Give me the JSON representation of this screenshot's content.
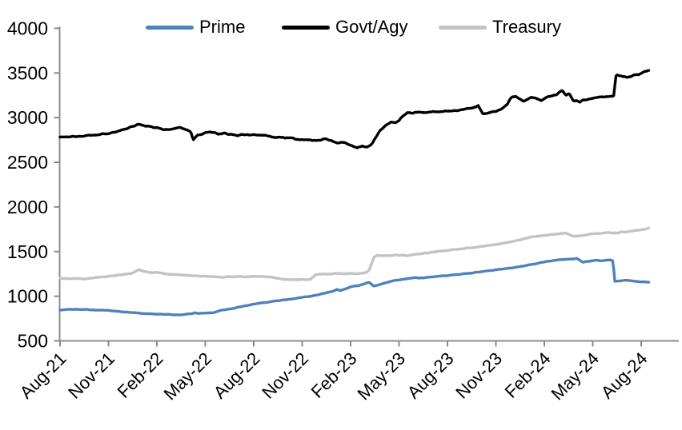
{
  "style": {
    "background": "#FFFFFF",
    "axis_color": "#8C8C8C",
    "label_color": "#000000",
    "series_stroke_width": 3.4,
    "jitter": {
      "Prime": 7,
      "Govt/Agy": 16,
      "Treasury": 8
    }
  },
  "chart_data": {
    "type": "line",
    "title": "",
    "xlabel": "",
    "ylabel": "",
    "grid": false,
    "legend_position": "top",
    "x_encoding": "months after Aug-2021 (0 = Aug-21, tick every 3 months)",
    "x_axis": {
      "tick_labels": [
        "Aug-21",
        "Nov-21",
        "Feb-22",
        "May-22",
        "Aug-22",
        "Nov-22",
        "Feb-23",
        "May-23",
        "Aug-23",
        "Nov-23",
        "Feb-24",
        "May-24",
        "Aug-24"
      ],
      "months_per_tick": 3,
      "label_rotation_deg": -45
    },
    "y_axis": {
      "tick_labels": [
        "500",
        "1000",
        "1500",
        "2000",
        "2500",
        "3000",
        "3500",
        "4000"
      ],
      "min": 500,
      "max": 4000,
      "step": 500
    },
    "series": [
      {
        "name": "Prime",
        "color": "#4F81BD",
        "points": [
          [
            0,
            845
          ],
          [
            0.5,
            853
          ],
          [
            1,
            856
          ],
          [
            1.5,
            851
          ],
          [
            2,
            848
          ],
          [
            2.5,
            845
          ],
          [
            3,
            840
          ],
          [
            3.5,
            833
          ],
          [
            4,
            825
          ],
          [
            4.5,
            817
          ],
          [
            5,
            809
          ],
          [
            5.5,
            803
          ],
          [
            6,
            799
          ],
          [
            6.5,
            796
          ],
          [
            7,
            794
          ],
          [
            7.5,
            792
          ],
          [
            8,
            800
          ],
          [
            8.3,
            812
          ],
          [
            8.6,
            806
          ],
          [
            9,
            810
          ],
          [
            9.5,
            813
          ],
          [
            10,
            843
          ],
          [
            10.5,
            856
          ],
          [
            11,
            877
          ],
          [
            11.5,
            893
          ],
          [
            12,
            910
          ],
          [
            12.5,
            925
          ],
          [
            13,
            938
          ],
          [
            13.5,
            950
          ],
          [
            14,
            962
          ],
          [
            14.5,
            973
          ],
          [
            15,
            986
          ],
          [
            15.5,
            1000
          ],
          [
            16,
            1016
          ],
          [
            16.5,
            1038
          ],
          [
            17,
            1060
          ],
          [
            17.15,
            1076
          ],
          [
            17.35,
            1064
          ],
          [
            18,
            1103
          ],
          [
            18.5,
            1122
          ],
          [
            18.9,
            1142
          ],
          [
            19.15,
            1157
          ],
          [
            19.45,
            1113
          ],
          [
            19.8,
            1128
          ],
          [
            20,
            1140
          ],
          [
            20.5,
            1168
          ],
          [
            21,
            1184
          ],
          [
            21.5,
            1199
          ],
          [
            22,
            1208
          ],
          [
            22.5,
            1204
          ],
          [
            23,
            1217
          ],
          [
            23.5,
            1224
          ],
          [
            24,
            1231
          ],
          [
            24.5,
            1241
          ],
          [
            25,
            1251
          ],
          [
            25.5,
            1261
          ],
          [
            26,
            1271
          ],
          [
            26.5,
            1283
          ],
          [
            27,
            1294
          ],
          [
            27.5,
            1306
          ],
          [
            28,
            1317
          ],
          [
            28.5,
            1331
          ],
          [
            29,
            1347
          ],
          [
            29.5,
            1364
          ],
          [
            30,
            1386
          ],
          [
            30.5,
            1397
          ],
          [
            31,
            1407
          ],
          [
            31.5,
            1414
          ],
          [
            32,
            1424
          ],
          [
            32.4,
            1379
          ],
          [
            32.8,
            1394
          ],
          [
            33.2,
            1404
          ],
          [
            33.6,
            1397
          ],
          [
            34,
            1406
          ],
          [
            34.26,
            1397
          ],
          [
            34.36,
            1164
          ],
          [
            34.7,
            1172
          ],
          [
            35,
            1178
          ],
          [
            35.5,
            1170
          ],
          [
            36,
            1162
          ],
          [
            36.5,
            1156
          ]
        ]
      },
      {
        "name": "Govt/Agy",
        "color": "#000000",
        "points": [
          [
            0,
            2780
          ],
          [
            0.5,
            2783
          ],
          [
            1,
            2788
          ],
          [
            1.5,
            2796
          ],
          [
            2,
            2805
          ],
          [
            2.5,
            2814
          ],
          [
            3,
            2825
          ],
          [
            3.5,
            2843
          ],
          [
            4,
            2868
          ],
          [
            4.5,
            2900
          ],
          [
            4.9,
            2930
          ],
          [
            5.3,
            2906
          ],
          [
            5.7,
            2896
          ],
          [
            6,
            2885
          ],
          [
            6.3,
            2868
          ],
          [
            6.6,
            2860
          ],
          [
            7,
            2870
          ],
          [
            7.4,
            2890
          ],
          [
            7.8,
            2868
          ],
          [
            8.1,
            2838
          ],
          [
            8.25,
            2752
          ],
          [
            8.5,
            2798
          ],
          [
            9,
            2828
          ],
          [
            9.4,
            2842
          ],
          [
            9.8,
            2818
          ],
          [
            10.2,
            2826
          ],
          [
            10.6,
            2808
          ],
          [
            11,
            2798
          ],
          [
            11.4,
            2812
          ],
          [
            11.8,
            2806
          ],
          [
            12.2,
            2810
          ],
          [
            12.6,
            2798
          ],
          [
            13,
            2790
          ],
          [
            13.5,
            2778
          ],
          [
            14,
            2768
          ],
          [
            14.4,
            2776
          ],
          [
            14.8,
            2752
          ],
          [
            15.2,
            2758
          ],
          [
            15.6,
            2748
          ],
          [
            16,
            2740
          ],
          [
            16.4,
            2762
          ],
          [
            16.8,
            2738
          ],
          [
            17.2,
            2712
          ],
          [
            17.6,
            2722
          ],
          [
            18,
            2692
          ],
          [
            18.4,
            2664
          ],
          [
            18.7,
            2678
          ],
          [
            19,
            2668
          ],
          [
            19.3,
            2700
          ],
          [
            19.6,
            2790
          ],
          [
            19.9,
            2868
          ],
          [
            20.2,
            2912
          ],
          [
            20.5,
            2952
          ],
          [
            20.8,
            2938
          ],
          [
            21.1,
            2990
          ],
          [
            21.5,
            3058
          ],
          [
            21.9,
            3052
          ],
          [
            22.3,
            3062
          ],
          [
            22.7,
            3055
          ],
          [
            23.1,
            3068
          ],
          [
            23.5,
            3060
          ],
          [
            24,
            3074
          ],
          [
            24.5,
            3080
          ],
          [
            25,
            3092
          ],
          [
            25.5,
            3108
          ],
          [
            25.9,
            3134
          ],
          [
            26.2,
            3038
          ],
          [
            26.5,
            3052
          ],
          [
            26.9,
            3068
          ],
          [
            27.3,
            3092
          ],
          [
            27.7,
            3148
          ],
          [
            27.9,
            3218
          ],
          [
            28.2,
            3240
          ],
          [
            28.7,
            3180
          ],
          [
            29.2,
            3224
          ],
          [
            29.8,
            3196
          ],
          [
            30.3,
            3240
          ],
          [
            30.7,
            3254
          ],
          [
            31.1,
            3304
          ],
          [
            31.35,
            3242
          ],
          [
            31.55,
            3272
          ],
          [
            31.8,
            3190
          ],
          [
            32.2,
            3178
          ],
          [
            32.6,
            3204
          ],
          [
            33,
            3220
          ],
          [
            33.5,
            3228
          ],
          [
            34,
            3234
          ],
          [
            34.3,
            3244
          ],
          [
            34.45,
            3478
          ],
          [
            34.8,
            3468
          ],
          [
            35.1,
            3448
          ],
          [
            35.5,
            3468
          ],
          [
            36,
            3494
          ],
          [
            36.5,
            3528
          ]
        ]
      },
      {
        "name": "Treasury",
        "color": "#C3C3C3",
        "points": [
          [
            0,
            1200
          ],
          [
            0.5,
            1196
          ],
          [
            1,
            1198
          ],
          [
            1.5,
            1194
          ],
          [
            2,
            1204
          ],
          [
            2.5,
            1212
          ],
          [
            3,
            1222
          ],
          [
            3.5,
            1234
          ],
          [
            4,
            1247
          ],
          [
            4.4,
            1256
          ],
          [
            4.9,
            1297
          ],
          [
            5.3,
            1272
          ],
          [
            5.7,
            1262
          ],
          [
            6,
            1268
          ],
          [
            6.5,
            1251
          ],
          [
            7,
            1245
          ],
          [
            7.5,
            1240
          ],
          [
            8,
            1234
          ],
          [
            8.5,
            1228
          ],
          [
            9,
            1222
          ],
          [
            9.5,
            1217
          ],
          [
            10,
            1213
          ],
          [
            10.5,
            1217
          ],
          [
            11,
            1221
          ],
          [
            11.5,
            1217
          ],
          [
            12,
            1224
          ],
          [
            12.5,
            1221
          ],
          [
            13,
            1214
          ],
          [
            13.5,
            1199
          ],
          [
            14,
            1186
          ],
          [
            14.5,
            1189
          ],
          [
            15,
            1185
          ],
          [
            15.5,
            1189
          ],
          [
            15.85,
            1241
          ],
          [
            16.2,
            1250
          ],
          [
            16.6,
            1247
          ],
          [
            17,
            1254
          ],
          [
            17.5,
            1251
          ],
          [
            18,
            1256
          ],
          [
            18.5,
            1252
          ],
          [
            19,
            1267
          ],
          [
            19.15,
            1289
          ],
          [
            19.45,
            1438
          ],
          [
            19.7,
            1461
          ],
          [
            20,
            1452
          ],
          [
            20.5,
            1458
          ],
          [
            21,
            1461
          ],
          [
            21.5,
            1457
          ],
          [
            22,
            1469
          ],
          [
            22.5,
            1478
          ],
          [
            23,
            1491
          ],
          [
            23.5,
            1504
          ],
          [
            24,
            1514
          ],
          [
            24.5,
            1524
          ],
          [
            25,
            1534
          ],
          [
            25.5,
            1544
          ],
          [
            26,
            1554
          ],
          [
            26.5,
            1567
          ],
          [
            27,
            1581
          ],
          [
            27.5,
            1596
          ],
          [
            28,
            1612
          ],
          [
            28.5,
            1634
          ],
          [
            29,
            1656
          ],
          [
            29.5,
            1671
          ],
          [
            30,
            1682
          ],
          [
            30.5,
            1692
          ],
          [
            31,
            1700
          ],
          [
            31.3,
            1709
          ],
          [
            31.8,
            1671
          ],
          [
            32.2,
            1677
          ],
          [
            32.6,
            1689
          ],
          [
            33,
            1699
          ],
          [
            33.5,
            1704
          ],
          [
            34,
            1711
          ],
          [
            34.4,
            1707
          ],
          [
            34.8,
            1717
          ],
          [
            35.2,
            1724
          ],
          [
            35.6,
            1734
          ],
          [
            36,
            1744
          ],
          [
            36.5,
            1761
          ]
        ]
      }
    ]
  }
}
